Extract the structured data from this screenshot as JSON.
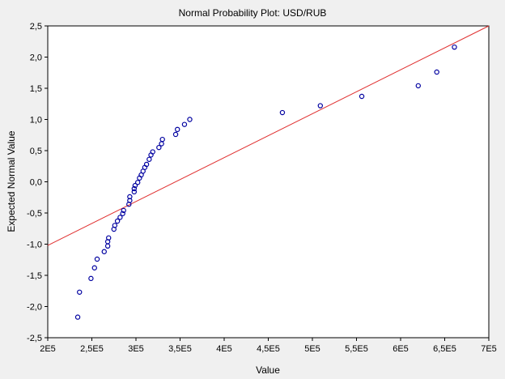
{
  "chart_data": {
    "type": "scatter",
    "title": "Normal Probability Plot: USD/RUB",
    "xlabel": "Value",
    "ylabel": "Expected Normal Value",
    "xlim": [
      200000,
      700000
    ],
    "ylim": [
      -2.5,
      2.5
    ],
    "x_ticks": [
      200000,
      250000,
      300000,
      350000,
      400000,
      450000,
      500000,
      550000,
      600000,
      650000,
      700000
    ],
    "x_tick_labels": [
      "2E5",
      "2,5E5",
      "3E5",
      "3,5E5",
      "4E5",
      "4,5E5",
      "5E5",
      "5,5E5",
      "6E5",
      "6,5E5",
      "7E5"
    ],
    "y_ticks": [
      -2.5,
      -2.0,
      -1.5,
      -1.0,
      -0.5,
      0.0,
      0.5,
      1.0,
      1.5,
      2.0,
      2.5
    ],
    "y_tick_labels": [
      "-2,5",
      "-2,0",
      "-1,5",
      "-1,0",
      "-0,5",
      "0,0",
      "0,5",
      "1,0",
      "1,5",
      "2,0",
      "2,5"
    ],
    "grid": false,
    "colors": {
      "points": "#0000a0",
      "line": "#e03030",
      "background": "#f0f0f0",
      "plot_area": "#ffffff"
    },
    "reference_line": {
      "x1": 200000,
      "y1": -1.02,
      "x2": 700000,
      "y2": 2.5
    },
    "points": [
      {
        "x": 234000,
        "y": -2.17
      },
      {
        "x": 236000,
        "y": -1.77
      },
      {
        "x": 249000,
        "y": -1.55
      },
      {
        "x": 253000,
        "y": -1.38
      },
      {
        "x": 256000,
        "y": -1.24
      },
      {
        "x": 264000,
        "y": -1.12
      },
      {
        "x": 268000,
        "y": -1.03
      },
      {
        "x": 268000,
        "y": -0.96
      },
      {
        "x": 269000,
        "y": -0.9
      },
      {
        "x": 275000,
        "y": -0.76
      },
      {
        "x": 276000,
        "y": -0.7
      },
      {
        "x": 279000,
        "y": -0.63
      },
      {
        "x": 282000,
        "y": -0.57
      },
      {
        "x": 285000,
        "y": -0.51
      },
      {
        "x": 286000,
        "y": -0.46
      },
      {
        "x": 292000,
        "y": -0.36
      },
      {
        "x": 293000,
        "y": -0.3
      },
      {
        "x": 293000,
        "y": -0.24
      },
      {
        "x": 298000,
        "y": -0.16
      },
      {
        "x": 298000,
        "y": -0.11
      },
      {
        "x": 299000,
        "y": -0.06
      },
      {
        "x": 302000,
        "y": -0.01
      },
      {
        "x": 304000,
        "y": 0.06
      },
      {
        "x": 306000,
        "y": 0.11
      },
      {
        "x": 308000,
        "y": 0.17
      },
      {
        "x": 310000,
        "y": 0.23
      },
      {
        "x": 312000,
        "y": 0.28
      },
      {
        "x": 315000,
        "y": 0.36
      },
      {
        "x": 317000,
        "y": 0.43
      },
      {
        "x": 319000,
        "y": 0.48
      },
      {
        "x": 326000,
        "y": 0.55
      },
      {
        "x": 329000,
        "y": 0.61
      },
      {
        "x": 330000,
        "y": 0.68
      },
      {
        "x": 345000,
        "y": 0.76
      },
      {
        "x": 347000,
        "y": 0.84
      },
      {
        "x": 355000,
        "y": 0.92
      },
      {
        "x": 361000,
        "y": 1.0
      },
      {
        "x": 466000,
        "y": 1.11
      },
      {
        "x": 509000,
        "y": 1.22
      },
      {
        "x": 556000,
        "y": 1.37
      },
      {
        "x": 620000,
        "y": 1.54
      },
      {
        "x": 641000,
        "y": 1.76
      },
      {
        "x": 661000,
        "y": 2.16
      }
    ]
  }
}
